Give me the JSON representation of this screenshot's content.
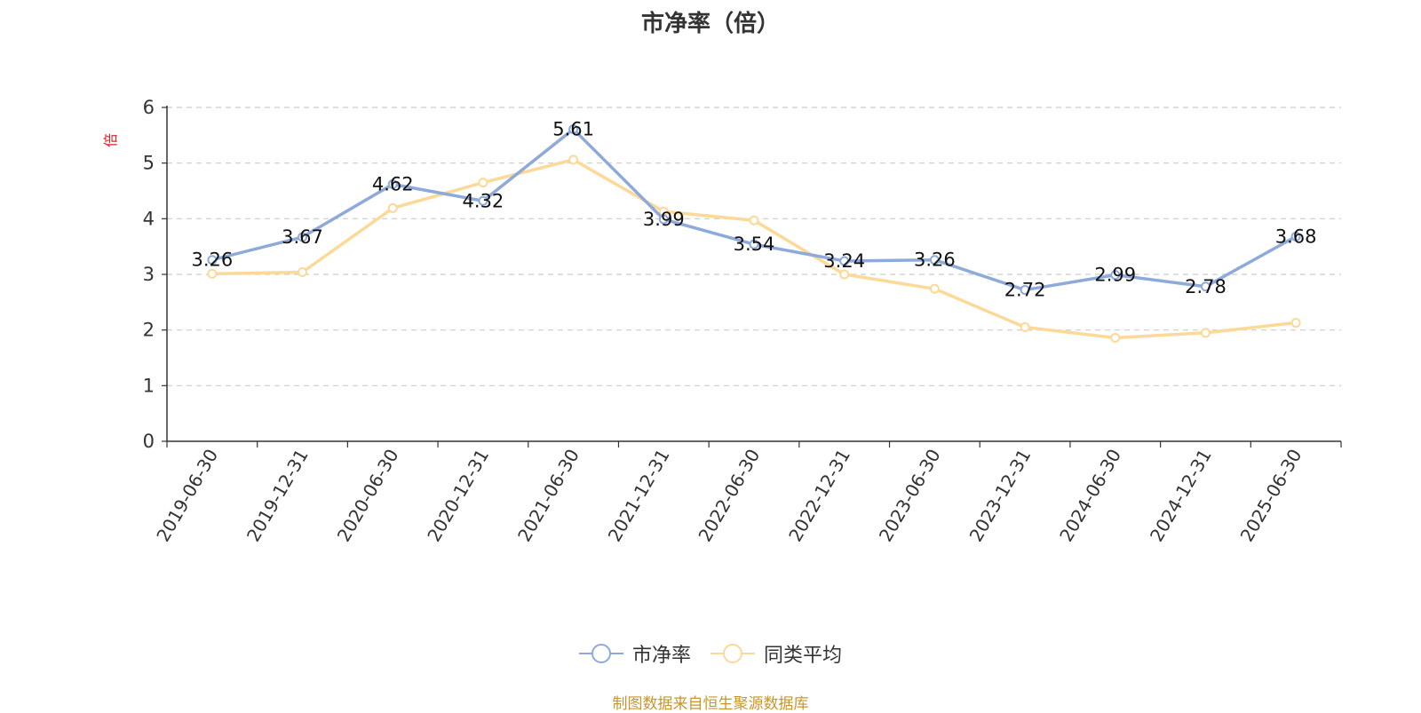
{
  "chart_data": {
    "type": "line",
    "title": "市净率（倍）",
    "ylabel": "倍",
    "xlabel": "",
    "categories": [
      "2019-06-30",
      "2019-12-31",
      "2020-06-30",
      "2020-12-31",
      "2021-06-30",
      "2021-12-31",
      "2022-06-30",
      "2022-12-31",
      "2023-06-30",
      "2023-12-31",
      "2024-06-30",
      "2024-12-31",
      "2025-06-30"
    ],
    "ylim": [
      0,
      6
    ],
    "yticks": [
      0,
      1,
      2,
      3,
      4,
      5,
      6
    ],
    "grid": true,
    "legend_position": "bottom",
    "series": [
      {
        "name": "市净率",
        "color": "#8eaadb",
        "values": [
          3.26,
          3.67,
          4.62,
          4.32,
          5.61,
          3.99,
          3.54,
          3.24,
          3.26,
          2.72,
          2.99,
          2.78,
          3.68
        ],
        "labels": [
          "3.26",
          "3.67",
          "4.62",
          "4.32",
          "5.61",
          "3.99",
          "3.54",
          "3.24",
          "3.26",
          "2.72",
          "2.99",
          "2.78",
          "3.68"
        ]
      },
      {
        "name": "同类平均",
        "color": "#fcd998",
        "values": [
          3.01,
          3.04,
          4.19,
          4.65,
          5.06,
          4.13,
          3.97,
          3.0,
          2.74,
          2.05,
          1.86,
          1.95,
          2.13
        ]
      }
    ]
  },
  "source_note": "制图数据来自恒生聚源数据库"
}
